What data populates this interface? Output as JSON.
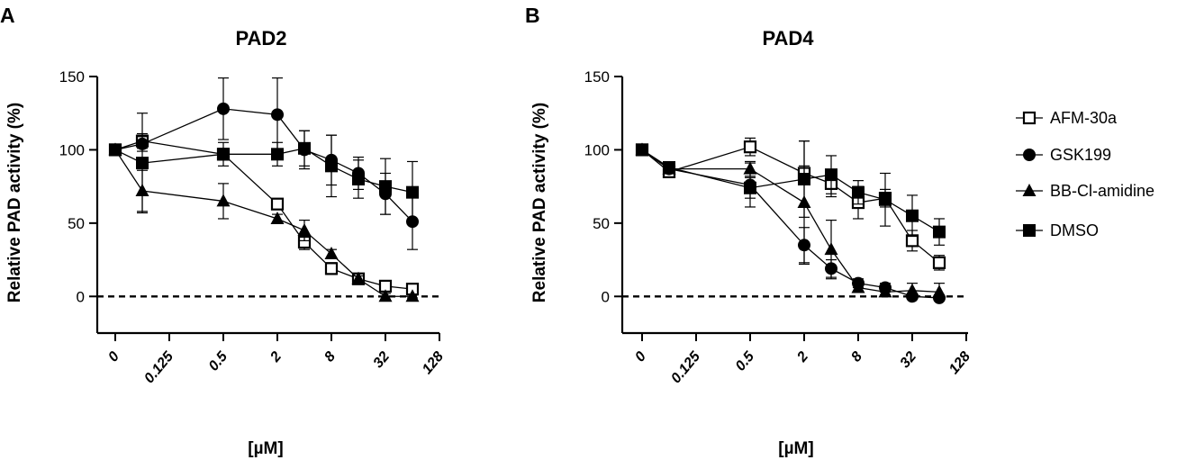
{
  "chart_data": [
    {
      "panel": "A",
      "type": "line",
      "title": "PAD2",
      "xlabel": "[µM]",
      "ylabel": "Relative PAD activity  (%)",
      "x_ticks": [
        "0",
        "0.125",
        "0.5",
        "2",
        "8",
        "32",
        "128"
      ],
      "x_tick_positions": [
        0,
        1,
        2,
        3,
        4,
        5,
        6
      ],
      "ylim": [
        -25,
        150
      ],
      "y_ticks": [
        0,
        50,
        100,
        150
      ],
      "reference_line": 0,
      "series": [
        {
          "name": "AFM-30a",
          "marker": "square-open",
          "x": [
            0,
            0.5,
            2,
            3,
            3.5,
            4,
            4.5,
            5,
            5.5
          ],
          "y": [
            100,
            106,
            97,
            63,
            37,
            19,
            12,
            7,
            5
          ],
          "err": [
            0,
            5,
            4,
            3,
            5,
            4,
            3,
            3,
            2
          ]
        },
        {
          "name": "GSK199",
          "marker": "circle",
          "x": [
            0,
            0.5,
            2,
            3,
            3.5,
            4,
            4.5,
            5,
            5.5
          ],
          "y": [
            100,
            104,
            128,
            124,
            100,
            93,
            84,
            70,
            51
          ],
          "err": [
            0,
            5,
            21,
            25,
            13,
            17,
            11,
            14,
            19
          ]
        },
        {
          "name": "BB-Cl-amidine",
          "marker": "triangle",
          "x": [
            0,
            0.5,
            2,
            3,
            3.5,
            4,
            4.5,
            5,
            5.5
          ],
          "y": [
            100,
            72,
            65,
            53,
            45,
            29,
            12,
            0,
            0
          ],
          "err": [
            0,
            14,
            12,
            3,
            7,
            3,
            2,
            2,
            1
          ]
        },
        {
          "name": "DMSO",
          "marker": "square",
          "x": [
            0,
            0.5,
            2,
            3,
            3.5,
            4,
            4.5,
            5,
            5.5
          ],
          "y": [
            100,
            91,
            97,
            97,
            101,
            89,
            80,
            75,
            71
          ],
          "err": [
            0,
            34,
            8,
            8,
            12,
            21,
            13,
            19,
            21
          ]
        }
      ]
    },
    {
      "panel": "B",
      "type": "line",
      "title": "PAD4",
      "xlabel": "[µM]",
      "ylabel": "Relative PAD activity  (%)",
      "x_ticks": [
        "0",
        "0.125",
        "0.5",
        "2",
        "8",
        "32",
        "128"
      ],
      "x_tick_positions": [
        0,
        1,
        2,
        3,
        4,
        5,
        6
      ],
      "ylim": [
        -25,
        150
      ],
      "y_ticks": [
        0,
        50,
        100,
        150
      ],
      "reference_line": 0,
      "series": [
        {
          "name": "AFM-30a",
          "marker": "square-open",
          "x": [
            0,
            0.5,
            2,
            3,
            3.5,
            4,
            4.5,
            5,
            5.5
          ],
          "y": [
            100,
            85,
            102,
            84,
            77,
            64,
            67,
            38,
            23
          ],
          "err": [
            0,
            3,
            6,
            5,
            9,
            11,
            6,
            7,
            5
          ]
        },
        {
          "name": "GSK199",
          "marker": "circle",
          "x": [
            0,
            0.5,
            2,
            3,
            3.5,
            4,
            4.5,
            5,
            5.5
          ],
          "y": [
            100,
            87,
            76,
            35,
            19,
            9,
            6,
            0,
            -1
          ],
          "err": [
            0,
            3,
            15,
            12,
            6,
            3,
            3,
            2,
            2
          ]
        },
        {
          "name": "BB-Cl-amidine",
          "marker": "triangle",
          "x": [
            0,
            0.5,
            2,
            3,
            3.5,
            4,
            4.5,
            5,
            5.5
          ],
          "y": [
            100,
            87,
            87,
            64,
            32,
            6,
            3,
            4,
            3
          ],
          "err": [
            0,
            3,
            5,
            42,
            20,
            3,
            2,
            5,
            6
          ]
        },
        {
          "name": "DMSO",
          "marker": "square",
          "x": [
            0,
            0.5,
            2,
            3,
            3.5,
            4,
            4.5,
            5,
            5.5
          ],
          "y": [
            100,
            88,
            74,
            80,
            83,
            71,
            66,
            55,
            44
          ],
          "err": [
            0,
            3,
            7,
            26,
            13,
            8,
            18,
            14,
            9
          ]
        }
      ]
    }
  ],
  "legend": {
    "placement": "right",
    "items": [
      {
        "label": "AFM-30a",
        "marker": "square-open"
      },
      {
        "label": "GSK199",
        "marker": "circle"
      },
      {
        "label": "BB-Cl-amidine",
        "marker": "triangle"
      },
      {
        "label": "DMSO",
        "marker": "square"
      }
    ]
  }
}
